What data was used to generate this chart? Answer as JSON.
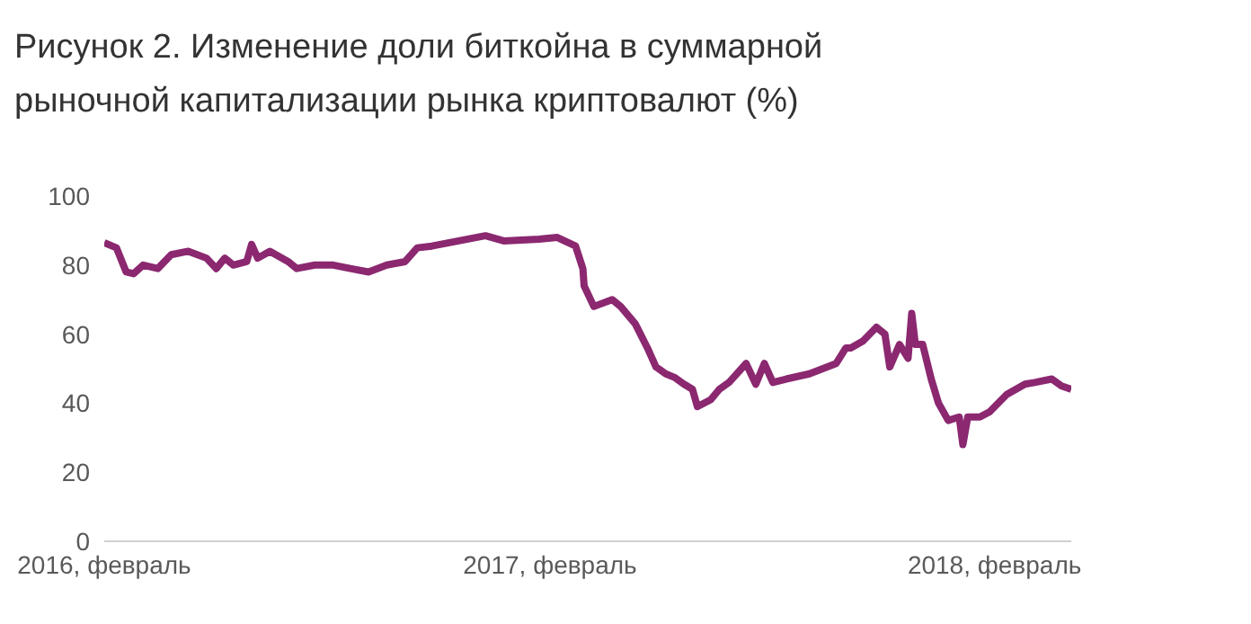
{
  "chart_data": {
    "type": "line",
    "title": "Рисунок 2. Изменение доли биткойна в суммарной рыночной капитализации рынка криптовалют (%)",
    "x": [
      "2016-02-01",
      "2016-02-11",
      "2016-02-19",
      "2016-02-25",
      "2016-03-04",
      "2016-03-16",
      "2016-03-27",
      "2016-04-10",
      "2016-04-25",
      "2016-05-03",
      "2016-05-10",
      "2016-05-17",
      "2016-05-28",
      "2016-06-01",
      "2016-06-06",
      "2016-06-16",
      "2016-07-01",
      "2016-07-08",
      "2016-07-23",
      "2016-08-07",
      "2016-08-21",
      "2016-09-05",
      "2016-09-20",
      "2016-10-05",
      "2016-10-15",
      "2016-10-27",
      "2016-11-18",
      "2016-12-10",
      "2016-12-25",
      "2017-01-23",
      "2017-02-07",
      "2017-02-22",
      "2017-02-28",
      "2017-03-01",
      "2017-03-09",
      "2017-03-24",
      "2017-03-31",
      "2017-04-12",
      "2017-04-22",
      "2017-04-29",
      "2017-05-07",
      "2017-05-14",
      "2017-05-22",
      "2017-05-29",
      "2017-06-02",
      "2017-06-13",
      "2017-06-20",
      "2017-06-28",
      "2017-07-12",
      "2017-07-20",
      "2017-07-27",
      "2017-08-03",
      "2017-08-14",
      "2017-09-02",
      "2017-09-24",
      "2017-10-02",
      "2017-10-06",
      "2017-10-16",
      "2017-10-27",
      "2017-11-03",
      "2017-11-07",
      "2017-11-15",
      "2017-11-22",
      "2017-11-25",
      "2017-11-28",
      "2017-12-04",
      "2017-12-11",
      "2017-12-17",
      "2017-12-25",
      "2018-01-03",
      "2018-01-06",
      "2018-01-10",
      "2018-01-20",
      "2018-01-28",
      "2018-02-11",
      "2018-02-26",
      "2018-03-06",
      "2018-03-20",
      "2018-03-28",
      "2018-04-05"
    ],
    "series": [
      {
        "color": "#8b2870",
        "values": [
          86.5,
          85,
          78,
          77.5,
          80,
          79,
          83,
          84,
          82,
          79,
          82,
          80,
          81,
          86,
          82,
          84,
          81,
          79,
          80,
          80,
          79,
          78,
          80,
          81,
          85,
          85.5,
          87,
          88.5,
          87,
          87.5,
          88,
          85.5,
          79,
          74,
          68,
          70,
          68,
          63,
          56,
          50.5,
          48.5,
          47.5,
          45.5,
          44,
          39,
          41,
          44,
          46,
          51.5,
          45.5,
          51.5,
          46,
          47,
          48.5,
          51.5,
          56,
          56,
          58,
          62,
          60,
          50.5,
          57,
          53,
          66,
          57,
          57,
          47,
          40,
          35,
          36,
          28,
          36,
          36,
          37.5,
          42.5,
          45.5,
          46,
          47,
          45,
          44
        ]
      }
    ],
    "xlim": [
      "2016-02-01",
      "2018-04-05"
    ],
    "xticks": [
      {
        "value": "2016-02-01",
        "label": "2016, февраль"
      },
      {
        "value": "2017-02-01",
        "label": "2017, февраль"
      },
      {
        "value": "2018-02-01",
        "label": "2018, февраль"
      }
    ],
    "ylim": [
      0,
      100
    ],
    "yticks": [
      0,
      20,
      40,
      60,
      80,
      100
    ],
    "grid": false,
    "legend": false,
    "marker": "none",
    "line_style": "solid"
  }
}
